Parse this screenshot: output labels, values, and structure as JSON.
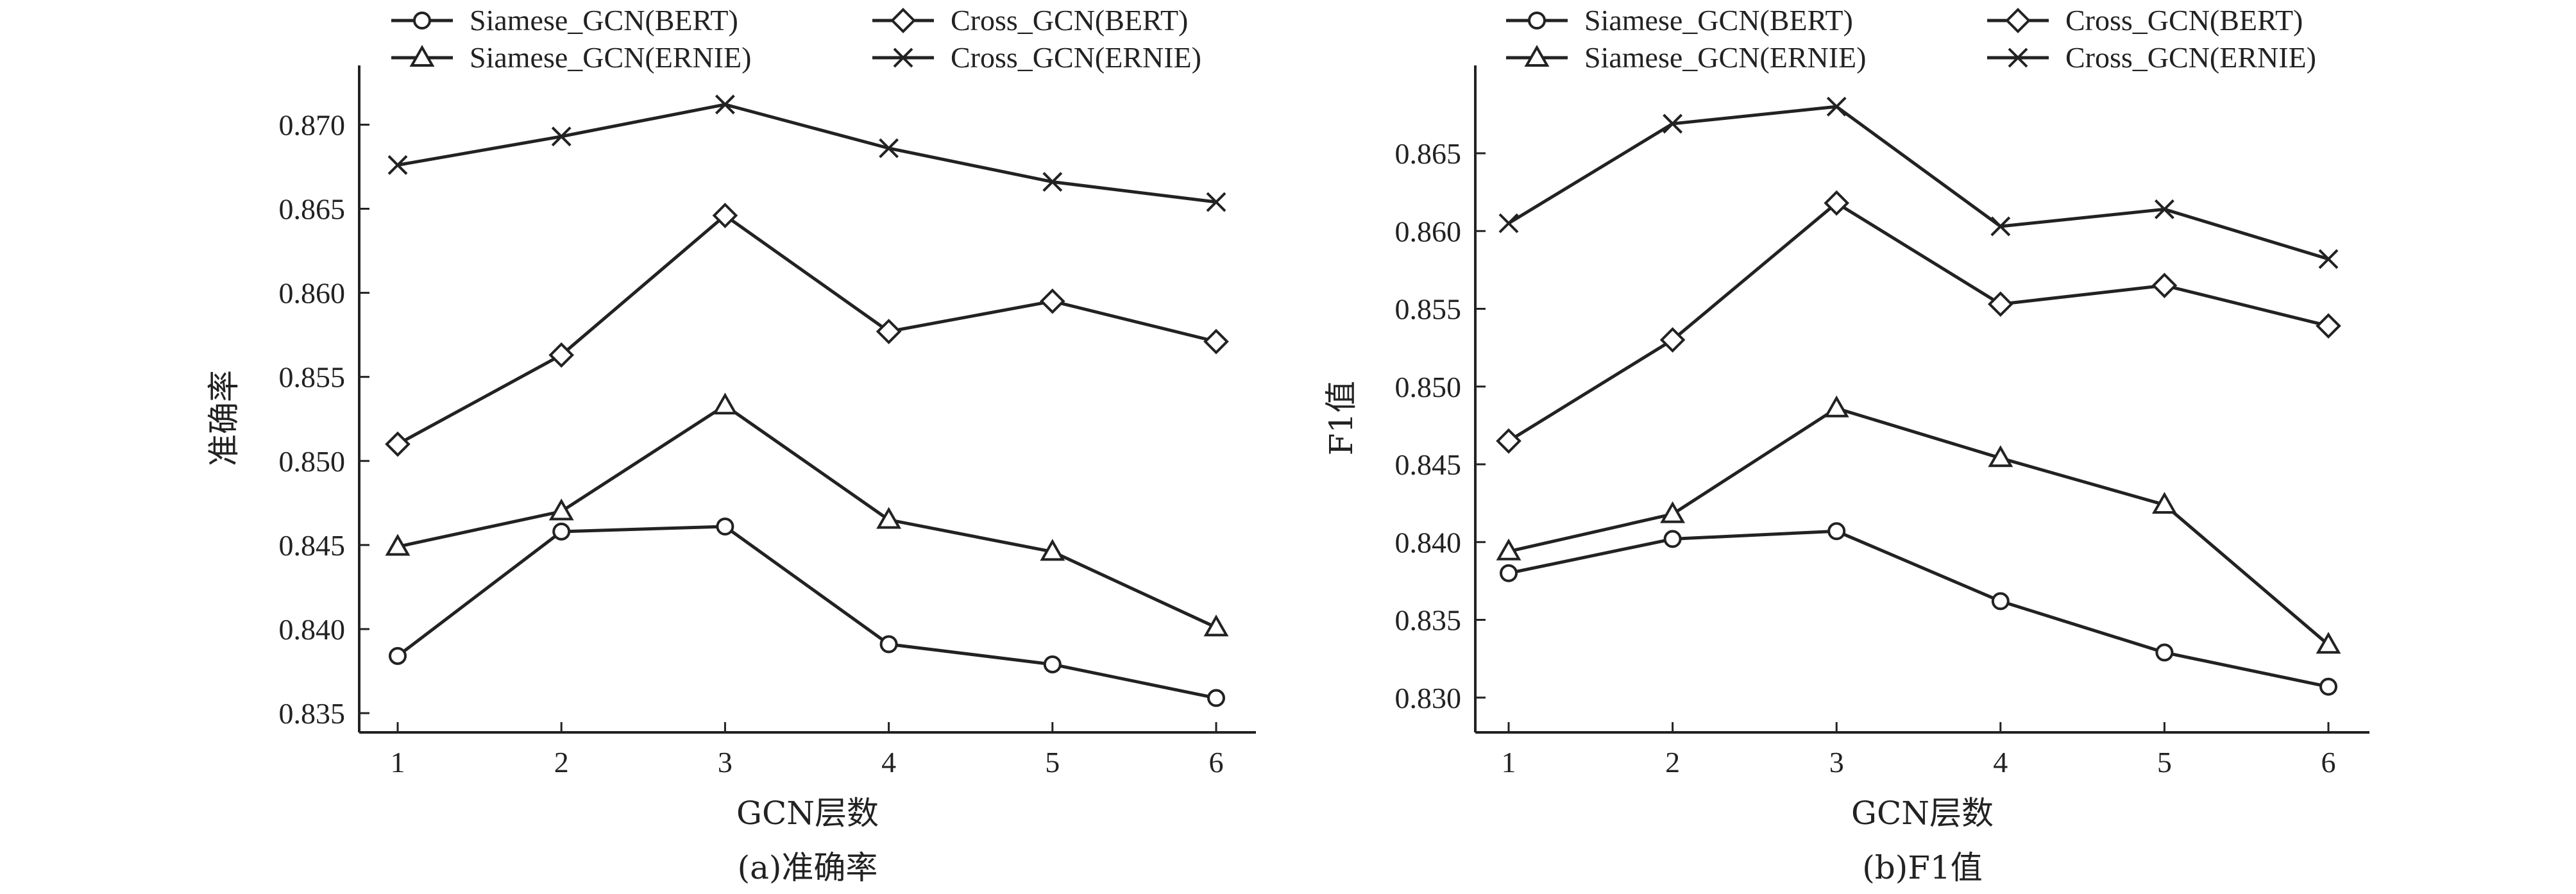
{
  "chart_data": [
    {
      "type": "line",
      "caption": "(a)准确率",
      "xlabel": "GCN层数",
      "ylabel": "准确率",
      "x": [
        1,
        2,
        3,
        4,
        5,
        6
      ],
      "ylim": [
        0.835,
        0.872
      ],
      "yticks": [
        "0.835",
        "0.840",
        "0.845",
        "0.850",
        "0.855",
        "0.860",
        "0.865",
        "0.870"
      ],
      "legend_position": "top",
      "series": [
        {
          "name": "Siamese_GCN(BERT)",
          "marker": "circle",
          "values": [
            0.8384,
            0.8458,
            0.8461,
            0.8391,
            0.8379,
            0.8359
          ]
        },
        {
          "name": "Cross_GCN(BERT)",
          "marker": "diamond",
          "values": [
            0.851,
            0.8563,
            0.8646,
            0.8577,
            0.8595,
            0.8571
          ]
        },
        {
          "name": "Siamese_GCN(ERNIE)",
          "marker": "triangle",
          "values": [
            0.8449,
            0.847,
            0.8533,
            0.8465,
            0.8446,
            0.8401
          ]
        },
        {
          "name": "Cross_GCN(ERNIE)",
          "marker": "x",
          "values": [
            0.8676,
            0.8693,
            0.8712,
            0.8686,
            0.8666,
            0.8654
          ]
        }
      ]
    },
    {
      "type": "line",
      "caption": "(b)F1值",
      "xlabel": "GCN层数",
      "ylabel": "F1值",
      "x": [
        1,
        2,
        3,
        4,
        5,
        6
      ],
      "ylim": [
        0.829,
        0.869
      ],
      "yticks": [
        "0.830",
        "0.835",
        "0.840",
        "0.845",
        "0.850",
        "0.855",
        "0.860",
        "0.865"
      ],
      "legend_position": "top",
      "series": [
        {
          "name": "Siamese_GCN(BERT)",
          "marker": "circle",
          "values": [
            0.838,
            0.8402,
            0.8407,
            0.8362,
            0.8329,
            0.8307
          ]
        },
        {
          "name": "Cross_GCN(BERT)",
          "marker": "diamond",
          "values": [
            0.8465,
            0.853,
            0.8618,
            0.8553,
            0.8565,
            0.8539
          ]
        },
        {
          "name": "Siamese_GCN(ERNIE)",
          "marker": "triangle",
          "values": [
            0.8394,
            0.8418,
            0.8486,
            0.8454,
            0.8424,
            0.8334
          ]
        },
        {
          "name": "Cross_GCN(ERNIE)",
          "marker": "x",
          "values": [
            0.8605,
            0.8669,
            0.868,
            0.8603,
            0.8614,
            0.8582
          ]
        }
      ]
    }
  ]
}
